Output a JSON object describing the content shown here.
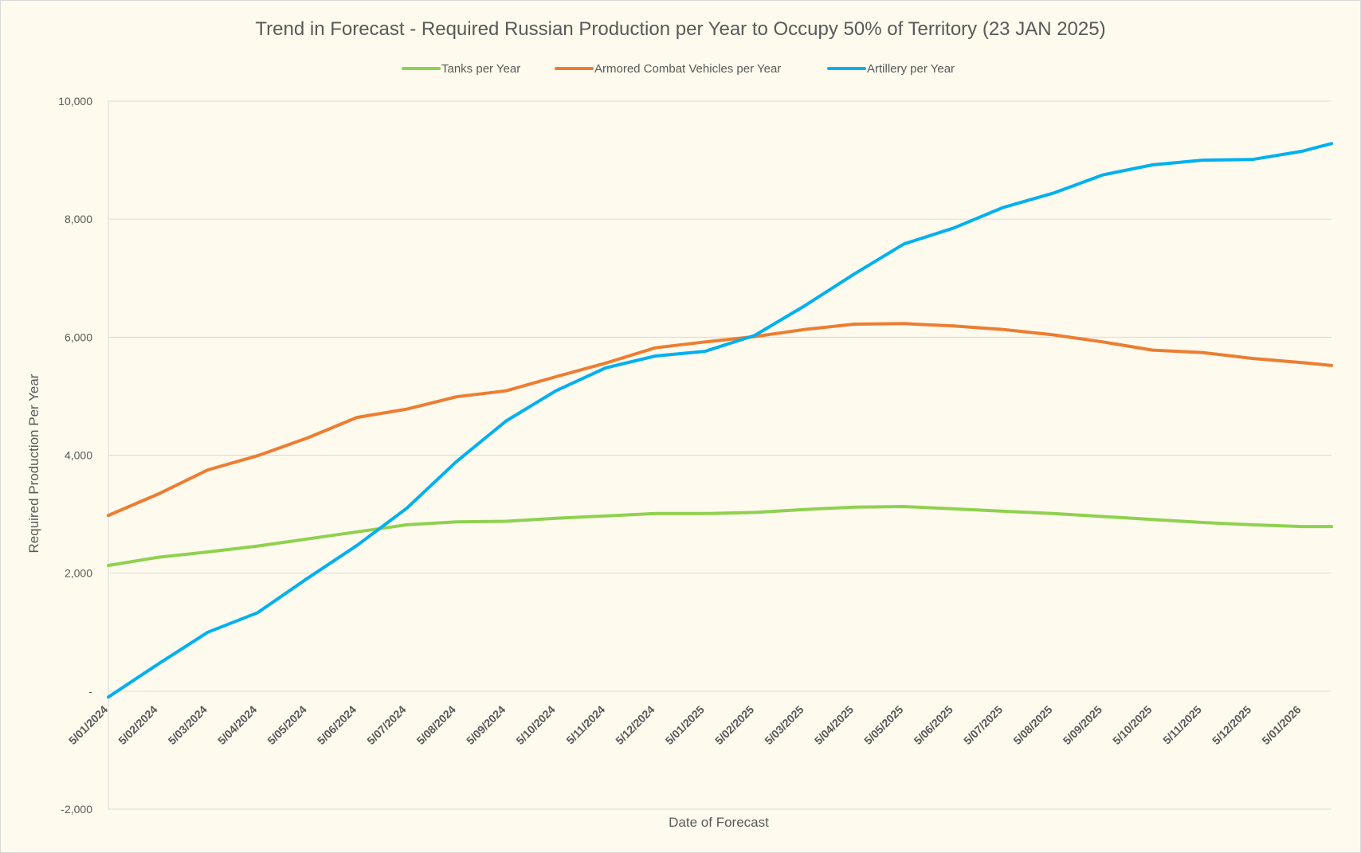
{
  "chart_data": {
    "type": "line",
    "title": "Trend in Forecast - Required Russian Production per Year to Occupy 50% of Territory (23 JAN 2025)",
    "xlabel": "Date of Forecast",
    "ylabel": "Required Production Per Year",
    "ylim": [
      -2000,
      10000
    ],
    "yticks": [
      {
        "value": 10000,
        "label": "10,000"
      },
      {
        "value": 8000,
        "label": "8,000"
      },
      {
        "value": 6000,
        "label": "6,000"
      },
      {
        "value": 4000,
        "label": "4,000"
      },
      {
        "value": 2000,
        "label": "2,000"
      },
      {
        "value": 0,
        "label": "-"
      },
      {
        "value": -2000,
        "label": "-2,000"
      }
    ],
    "grid": true,
    "legend_position": "top",
    "x": [
      "5/01/2024",
      "5/02/2024",
      "5/03/2024",
      "5/04/2024",
      "5/05/2024",
      "5/06/2024",
      "5/07/2024",
      "5/08/2024",
      "5/09/2024",
      "5/10/2024",
      "5/11/2024",
      "5/12/2024",
      "5/01/2025",
      "5/02/2025",
      "5/03/2025",
      "5/04/2025",
      "5/05/2025",
      "5/06/2025",
      "5/07/2025",
      "5/08/2025",
      "5/09/2025",
      "5/10/2025",
      "5/11/2025",
      "5/12/2025",
      "5/01/2026"
    ],
    "x_end": 24.6,
    "series": [
      {
        "name": "Tanks per Year",
        "color": "#8fd14f",
        "points": [
          [
            0,
            2130
          ],
          [
            1,
            2270
          ],
          [
            2,
            2360
          ],
          [
            3,
            2460
          ],
          [
            4,
            2580
          ],
          [
            5,
            2700
          ],
          [
            6,
            2820
          ],
          [
            7,
            2870
          ],
          [
            8,
            2880
          ],
          [
            9,
            2930
          ],
          [
            10,
            2970
          ],
          [
            11,
            3010
          ],
          [
            12,
            3010
          ],
          [
            13,
            3030
          ],
          [
            14,
            3080
          ],
          [
            15,
            3120
          ],
          [
            16,
            3130
          ],
          [
            17,
            3090
          ],
          [
            18,
            3050
          ],
          [
            19,
            3010
          ],
          [
            20,
            2960
          ],
          [
            21,
            2910
          ],
          [
            22,
            2860
          ],
          [
            23,
            2820
          ],
          [
            24,
            2790
          ],
          [
            24.6,
            2790
          ]
        ]
      },
      {
        "name": "Armored Combat Vehicles per Year",
        "color": "#ed7d31",
        "points": [
          [
            0,
            2980
          ],
          [
            1,
            3340
          ],
          [
            2,
            3750
          ],
          [
            3,
            3990
          ],
          [
            4,
            4290
          ],
          [
            5,
            4640
          ],
          [
            6,
            4780
          ],
          [
            7,
            4990
          ],
          [
            8,
            5090
          ],
          [
            9,
            5330
          ],
          [
            10,
            5560
          ],
          [
            11,
            5820
          ],
          [
            12,
            5920
          ],
          [
            13,
            6010
          ],
          [
            14,
            6130
          ],
          [
            15,
            6220
          ],
          [
            16,
            6230
          ],
          [
            17,
            6190
          ],
          [
            18,
            6130
          ],
          [
            19,
            6040
          ],
          [
            20,
            5920
          ],
          [
            21,
            5780
          ],
          [
            22,
            5740
          ],
          [
            23,
            5640
          ],
          [
            24,
            5570
          ],
          [
            24.6,
            5520
          ]
        ]
      },
      {
        "name": "Artillery per Year",
        "color": "#00b0f0",
        "points": [
          [
            0,
            -100
          ],
          [
            1,
            460
          ],
          [
            2,
            1000
          ],
          [
            3,
            1330
          ],
          [
            4,
            1910
          ],
          [
            5,
            2470
          ],
          [
            6,
            3100
          ],
          [
            7,
            3890
          ],
          [
            8,
            4580
          ],
          [
            9,
            5090
          ],
          [
            10,
            5480
          ],
          [
            11,
            5680
          ],
          [
            12,
            5760
          ],
          [
            13,
            6030
          ],
          [
            14,
            6530
          ],
          [
            15,
            7070
          ],
          [
            16,
            7580
          ],
          [
            17,
            7850
          ],
          [
            18,
            8200
          ],
          [
            19,
            8440
          ],
          [
            20,
            8750
          ],
          [
            21,
            8920
          ],
          [
            22,
            9000
          ],
          [
            23,
            9010
          ],
          [
            24,
            9150
          ],
          [
            24.6,
            9280
          ]
        ]
      }
    ]
  }
}
